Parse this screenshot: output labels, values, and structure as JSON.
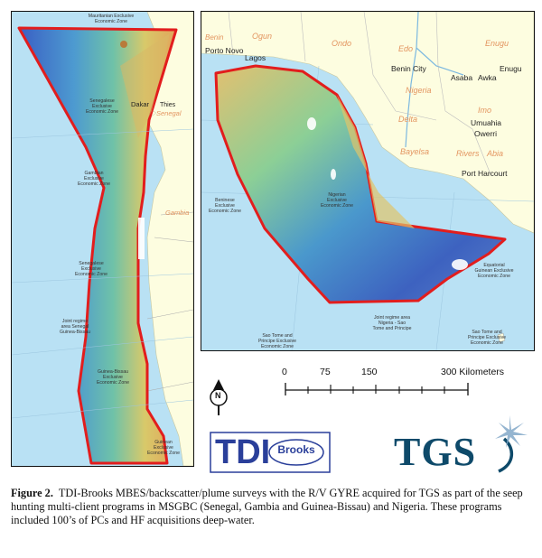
{
  "left_map": {
    "zone_labels": [
      {
        "key": "mauritania",
        "text": "Mauritanian Exclusive\nEconomic Zone"
      },
      {
        "key": "senegal",
        "text": "Senegalese\nExclusive\nEconomic Zone"
      },
      {
        "key": "gambia",
        "text": "Gambian\nExclusive\nEconomic Zone"
      },
      {
        "key": "senegal2",
        "text": "Senegalese\nExclusive\nEconomic Zone"
      },
      {
        "key": "joint",
        "text": "Joint regime\narea Senegal\nGuinea-Bissau"
      },
      {
        "key": "guineabissau",
        "text": "Guinea-Bissau\nExclusive\nEconomic Zone"
      },
      {
        "key": "guinean",
        "text": "Guinean\nExclusive\nEconomic Zone"
      }
    ],
    "cities": [
      {
        "key": "dakar",
        "text": "Dakar"
      },
      {
        "key": "thies",
        "text": "Thies"
      }
    ],
    "regions": [
      {
        "key": "senegal",
        "text": "Senegal"
      },
      {
        "key": "gambia",
        "text": "Gambia"
      }
    ]
  },
  "right_map": {
    "cities": [
      {
        "key": "porto_novo",
        "text": "Porto Novo"
      },
      {
        "key": "lagos",
        "text": "Lagos"
      },
      {
        "key": "benin_city",
        "text": "Benin City"
      },
      {
        "key": "asaba",
        "text": "Asaba"
      },
      {
        "key": "awka",
        "text": "Awka"
      },
      {
        "key": "enugu_city",
        "text": "Enugu"
      },
      {
        "key": "umuahia",
        "text": "Umuahia"
      },
      {
        "key": "owerri",
        "text": "Owerri"
      },
      {
        "key": "port_harcourt",
        "text": "Port Harcourt"
      }
    ],
    "regions": [
      {
        "key": "benin",
        "text": "Benin"
      },
      {
        "key": "ogun",
        "text": "Ogun"
      },
      {
        "key": "ondo",
        "text": "Ondo"
      },
      {
        "key": "edo",
        "text": "Edo"
      },
      {
        "key": "enugu",
        "text": "Enugu"
      },
      {
        "key": "nigeria",
        "text": "Nigeria"
      },
      {
        "key": "delta",
        "text": "Delta"
      },
      {
        "key": "imo",
        "text": "Imo"
      },
      {
        "key": "rivers",
        "text": "Rivers"
      },
      {
        "key": "abia",
        "text": "Abia"
      },
      {
        "key": "bayelsa",
        "text": "Bayelsa"
      }
    ],
    "zone_labels": [
      {
        "key": "beninese",
        "text": "Beninese\nExclusive\nEconomic Zone"
      },
      {
        "key": "nigerian",
        "text": "Nigerian\nExclusive\nEconomic Zone"
      },
      {
        "key": "equatorial",
        "text": "Equatorial\nGuinean Exclusive\nEconomic Zone"
      },
      {
        "key": "joint_nst",
        "text": "Joint regime area\nNigeria - Sao\nTome and Principe"
      },
      {
        "key": "stp1",
        "text": "Sao Tome and\nPrincipe Exclusive\nEconomic Zone"
      },
      {
        "key": "stp2",
        "text": "Sao Tome and\nPrincipe Exclusive\nEconomic Zone"
      }
    ]
  },
  "scale": {
    "ticks": [
      "0",
      "75",
      "150",
      "300 Kilometers"
    ],
    "north": "N"
  },
  "logos": {
    "tdi": "TDI",
    "brooks": "Brooks",
    "tgs": "TGS"
  },
  "caption": {
    "label": "Figure 2.",
    "text": "TDI-Brooks MBES/backscatter/plume surveys with the R/V GYRE acquired for TGS as part of the seep hunting multi-client programs in MSGBC (Senegal, Gambia and Guinea-Bissau) and Nigeria.  These programs included 100’s of PCs and HF acquisitions deep-water."
  },
  "colors": {
    "ocean": "#b9e1f4",
    "land": "#fdfde0",
    "boundary": "#e21d1d",
    "deep": "#3d67c8",
    "shallow": "#e8c060"
  }
}
